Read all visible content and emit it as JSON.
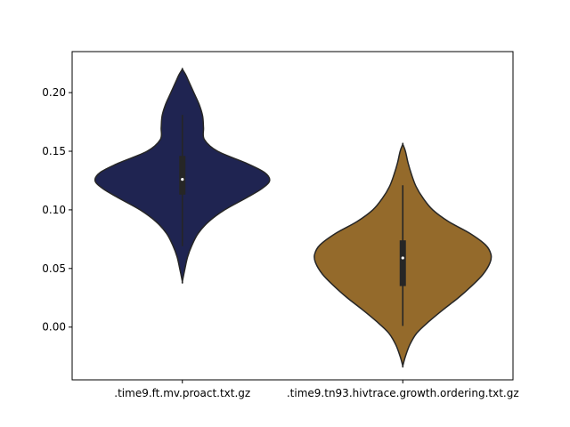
{
  "chart_data": {
    "type": "violin",
    "title": "",
    "xlabel": "",
    "ylabel": "",
    "ylim": [
      -0.045,
      0.235
    ],
    "yticks": [
      0.0,
      0.05,
      0.1,
      0.15,
      0.2
    ],
    "ytick_labels": [
      "0.00",
      "0.05",
      "0.10",
      "0.15",
      "0.20"
    ],
    "grid": false,
    "legend": "none",
    "categories": [
      ".time9.ft.mv.proact.txt.gz",
      ".time9.tn93.hivtrace.growth.ordering.txt.gz"
    ],
    "series": [
      {
        "color": "#1f2451",
        "min": 0.039,
        "max": 0.22,
        "whisker": [
          0.069,
          0.181
        ],
        "q1": 0.113,
        "median": 0.126,
        "q3": 0.146,
        "density_profile": [
          [
            0.039,
            0.0
          ],
          [
            0.05,
            0.03
          ],
          [
            0.06,
            0.06
          ],
          [
            0.07,
            0.11
          ],
          [
            0.08,
            0.18
          ],
          [
            0.09,
            0.3
          ],
          [
            0.1,
            0.48
          ],
          [
            0.11,
            0.72
          ],
          [
            0.118,
            0.9
          ],
          [
            0.125,
            0.99
          ],
          [
            0.132,
            0.93
          ],
          [
            0.14,
            0.72
          ],
          [
            0.15,
            0.4
          ],
          [
            0.16,
            0.25
          ],
          [
            0.17,
            0.24
          ],
          [
            0.18,
            0.23
          ],
          [
            0.19,
            0.19
          ],
          [
            0.2,
            0.13
          ],
          [
            0.21,
            0.07
          ],
          [
            0.215,
            0.04
          ],
          [
            0.22,
            0.0
          ]
        ]
      },
      {
        "color": "#946a2b",
        "min": -0.033,
        "max": 0.156,
        "whisker": [
          0.001,
          0.121
        ],
        "q1": 0.035,
        "median": 0.059,
        "q3": 0.074,
        "density_profile": [
          [
            -0.033,
            0.0
          ],
          [
            -0.025,
            0.03
          ],
          [
            -0.015,
            0.08
          ],
          [
            -0.005,
            0.16
          ],
          [
            0.005,
            0.3
          ],
          [
            0.015,
            0.46
          ],
          [
            0.025,
            0.63
          ],
          [
            0.035,
            0.78
          ],
          [
            0.045,
            0.91
          ],
          [
            0.055,
            0.99
          ],
          [
            0.062,
            1.0
          ],
          [
            0.07,
            0.94
          ],
          [
            0.08,
            0.76
          ],
          [
            0.09,
            0.52
          ],
          [
            0.1,
            0.34
          ],
          [
            0.11,
            0.23
          ],
          [
            0.12,
            0.15
          ],
          [
            0.13,
            0.1
          ],
          [
            0.14,
            0.06
          ],
          [
            0.15,
            0.03
          ],
          [
            0.156,
            0.0
          ]
        ]
      }
    ]
  }
}
